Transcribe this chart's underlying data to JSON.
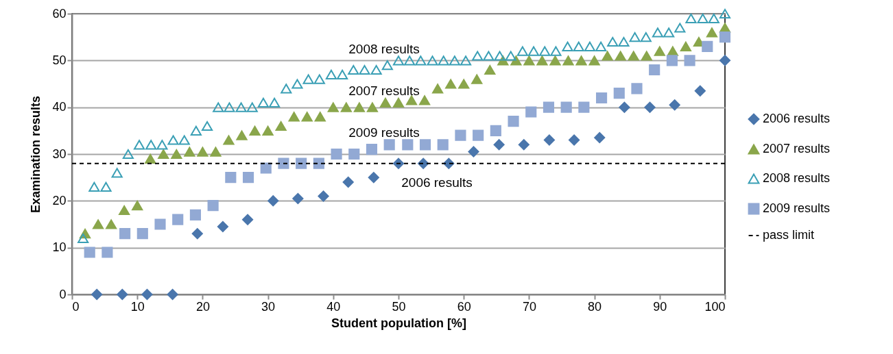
{
  "chart_data": {
    "type": "scatter",
    "xlabel": "Student population [%]",
    "ylabel": "Examination results",
    "xlim": [
      0,
      100
    ],
    "xticks": [
      0,
      10,
      20,
      30,
      40,
      50,
      60,
      70,
      80,
      90,
      100
    ],
    "ylim": [
      0,
      60
    ],
    "yticks": [
      0,
      10,
      20,
      30,
      40,
      50,
      60
    ],
    "grid": "y",
    "legend": "right",
    "series": [
      {
        "name": "2006 results",
        "color": "#4a76ac",
        "marker": "diamond",
        "x": [
          3.8,
          7.7,
          11.5,
          15.4,
          19.2,
          23.1,
          26.9,
          30.8,
          34.6,
          38.5,
          42.3,
          46.2,
          50,
          53.8,
          57.7,
          61.5,
          65.4,
          69.2,
          73.1,
          76.9,
          80.8,
          84.6,
          88.5,
          92.3,
          96.2,
          100
        ],
        "values": [
          0,
          0,
          0,
          0,
          13,
          14.5,
          16,
          20,
          20.5,
          21,
          24,
          25,
          28,
          28,
          28,
          30.5,
          32,
          32,
          33,
          33,
          33.5,
          40,
          40,
          40.5,
          43.5,
          50
        ]
      },
      {
        "name": "2007 results",
        "color": "#8aa64b",
        "marker": "triangle",
        "x": [
          2,
          4,
          6,
          8,
          10,
          12,
          14,
          16,
          18,
          20,
          22,
          24,
          26,
          28,
          30,
          32,
          34,
          36,
          38,
          40,
          42,
          44,
          46,
          48,
          50,
          52,
          54,
          56,
          58,
          60,
          62,
          64,
          66,
          68,
          70,
          72,
          74,
          76,
          78,
          80,
          82,
          84,
          86,
          88,
          90,
          92,
          94,
          96,
          98,
          100
        ],
        "values": [
          13,
          15,
          15,
          18,
          19,
          29,
          30,
          30,
          30.5,
          30.5,
          30.5,
          33,
          34,
          35,
          35,
          36,
          38,
          38,
          38,
          40,
          40,
          40,
          40,
          41,
          41,
          41.5,
          41.5,
          44,
          45,
          45,
          46,
          48,
          50,
          50,
          50,
          50,
          50,
          50,
          50,
          50,
          51,
          51,
          51,
          51,
          52,
          52,
          53,
          54,
          56,
          57
        ]
      },
      {
        "name": "2008 results",
        "color": "#3a9fb5",
        "marker": "triangle",
        "x": [
          1.7,
          3.4,
          5.2,
          6.9,
          8.6,
          10.3,
          12.1,
          13.8,
          15.5,
          17.2,
          19,
          20.7,
          22.4,
          24.1,
          25.9,
          27.6,
          29.3,
          31,
          32.8,
          34.5,
          36.2,
          37.9,
          39.7,
          41.4,
          43.1,
          44.8,
          46.6,
          48.3,
          50,
          51.7,
          53.4,
          55.2,
          56.9,
          58.6,
          60.3,
          62.1,
          63.8,
          65.5,
          67.2,
          69,
          70.7,
          72.4,
          74.1,
          75.9,
          77.6,
          79.3,
          81,
          82.8,
          84.5,
          86.2,
          87.9,
          89.7,
          91.4,
          93.1,
          94.8,
          96.6,
          98.3,
          100
        ],
        "values": [
          12,
          23,
          23,
          26,
          30,
          32,
          32,
          32,
          33,
          33,
          35,
          36,
          40,
          40,
          40,
          40,
          41,
          41,
          44,
          45,
          46,
          46,
          47,
          47,
          48,
          48,
          48,
          49,
          50,
          50,
          50,
          50,
          50,
          50,
          50,
          51,
          51,
          51,
          51,
          52,
          52,
          52,
          52,
          53,
          53,
          53,
          53,
          54,
          54,
          55,
          55,
          56,
          56,
          57,
          59,
          59,
          59,
          60
        ]
      },
      {
        "name": "2009 results",
        "color": "#92a9d4",
        "marker": "square",
        "x": [
          2.7,
          5.4,
          8.1,
          10.8,
          13.5,
          16.2,
          18.9,
          21.6,
          24.3,
          27,
          29.7,
          32.4,
          35.1,
          37.8,
          40.5,
          43.2,
          45.9,
          48.6,
          51.4,
          54.1,
          56.8,
          59.5,
          62.2,
          64.9,
          67.6,
          70.3,
          73,
          75.7,
          78.4,
          81.1,
          83.8,
          86.5,
          89.2,
          91.9,
          94.6,
          97.3,
          100
        ],
        "values": [
          9,
          9,
          13,
          13,
          15,
          16,
          17,
          19,
          25,
          25,
          27,
          28,
          28,
          28,
          30,
          30,
          31,
          32,
          32,
          32,
          32,
          34,
          34,
          35,
          37,
          39,
          40,
          40,
          40,
          42,
          43,
          44,
          48,
          50,
          50,
          53,
          55
        ]
      }
    ],
    "ref_lines": [
      {
        "axis": "y",
        "value": 28,
        "label": "pass limit",
        "color": "#000000",
        "line_style": "dashed"
      }
    ],
    "annotations": [
      "2008 results",
      "2007 results",
      "2009 results",
      "2006 results"
    ]
  }
}
